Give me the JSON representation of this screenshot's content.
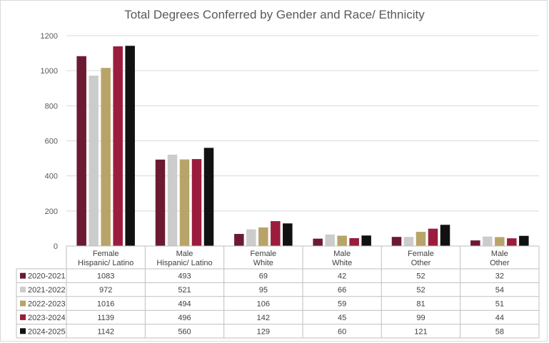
{
  "chart_data": {
    "type": "bar",
    "title": "Total Degrees Conferred by Gender and Race/ Ethnicity",
    "categories": [
      [
        "Female",
        "Hispanic/ Latino"
      ],
      [
        "Male",
        "Hispanic/ Latino"
      ],
      [
        "Female",
        "White"
      ],
      [
        "Male",
        "White"
      ],
      [
        "Female",
        "Other"
      ],
      [
        "Male",
        "Other"
      ]
    ],
    "series": [
      {
        "name": "2020-2021",
        "color": "#6b1a32",
        "values": [
          1083,
          493,
          69,
          42,
          52,
          32
        ]
      },
      {
        "name": "2021-2022",
        "color": "#cccccc",
        "values": [
          972,
          521,
          95,
          66,
          52,
          54
        ]
      },
      {
        "name": "2022-2023",
        "color": "#b8a468",
        "values": [
          1016,
          494,
          106,
          59,
          81,
          51
        ]
      },
      {
        "name": "2023-2024",
        "color": "#9b1c3c",
        "values": [
          1139,
          496,
          142,
          45,
          99,
          44
        ]
      },
      {
        "name": "2024-2025",
        "color": "#111111",
        "values": [
          1142,
          560,
          129,
          60,
          121,
          58
        ]
      }
    ],
    "yticks": [
      "0",
      "200",
      "400",
      "600",
      "800",
      "1000",
      "1200"
    ],
    "ylim": [
      0,
      1200
    ],
    "grid": true,
    "legend": "data-table"
  }
}
